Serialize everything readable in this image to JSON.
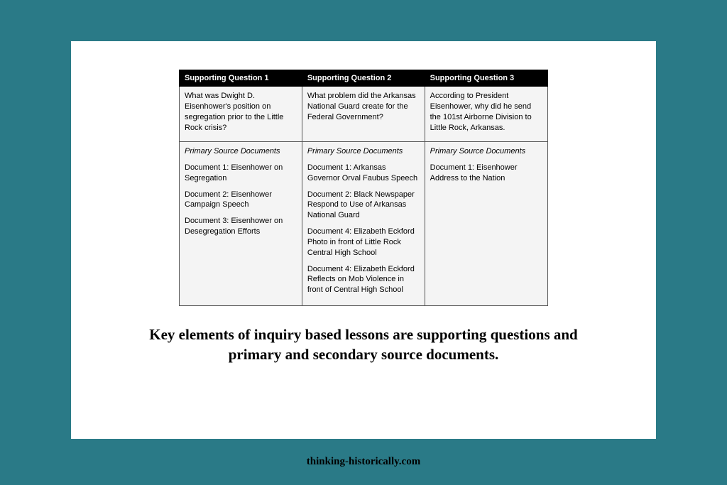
{
  "table": {
    "headers": [
      "Supporting Question 1",
      "Supporting Question 2",
      "Supporting Question 3"
    ],
    "questions": [
      "What was Dwight D. Eisenhower's position on segregation prior to the Little Rock crisis?",
      "What problem did the Arkansas National Guard create for the Federal Government?",
      "According to President Eisenhower, why did he send the 101st Airborne Division to Little Rock, Arkansas."
    ],
    "docs_heading": "Primary Source Documents",
    "docs": {
      "col1": [
        "Document 1: Eisenhower on Segregation",
        "Document 2: Eisenhower Campaign Speech",
        "Document 3: Eisenhower on Desegregation Efforts"
      ],
      "col2": [
        "Document 1: Arkansas Governor Orval Faubus Speech",
        "Document 2: Black Newspaper Respond to Use of Arkansas National Guard",
        "Document 4: Elizabeth Eckford Photo in front of Little Rock Central High School",
        "Document 4: Elizabeth Eckford Reflects on Mob Violence in front of Central High School"
      ],
      "col3": [
        "Document 1: Eisenhower Address to the Nation"
      ]
    }
  },
  "caption": "Key elements of inquiry based lessons are supporting questions and primary and secondary source documents.",
  "footer": "thinking-historically.com",
  "colors": {
    "page_bg": "#2a7a87",
    "card_bg": "#ffffff",
    "header_bg": "#000000",
    "header_fg": "#ffffff",
    "cell_bg": "#f4f4f4",
    "text": "#000000"
  }
}
